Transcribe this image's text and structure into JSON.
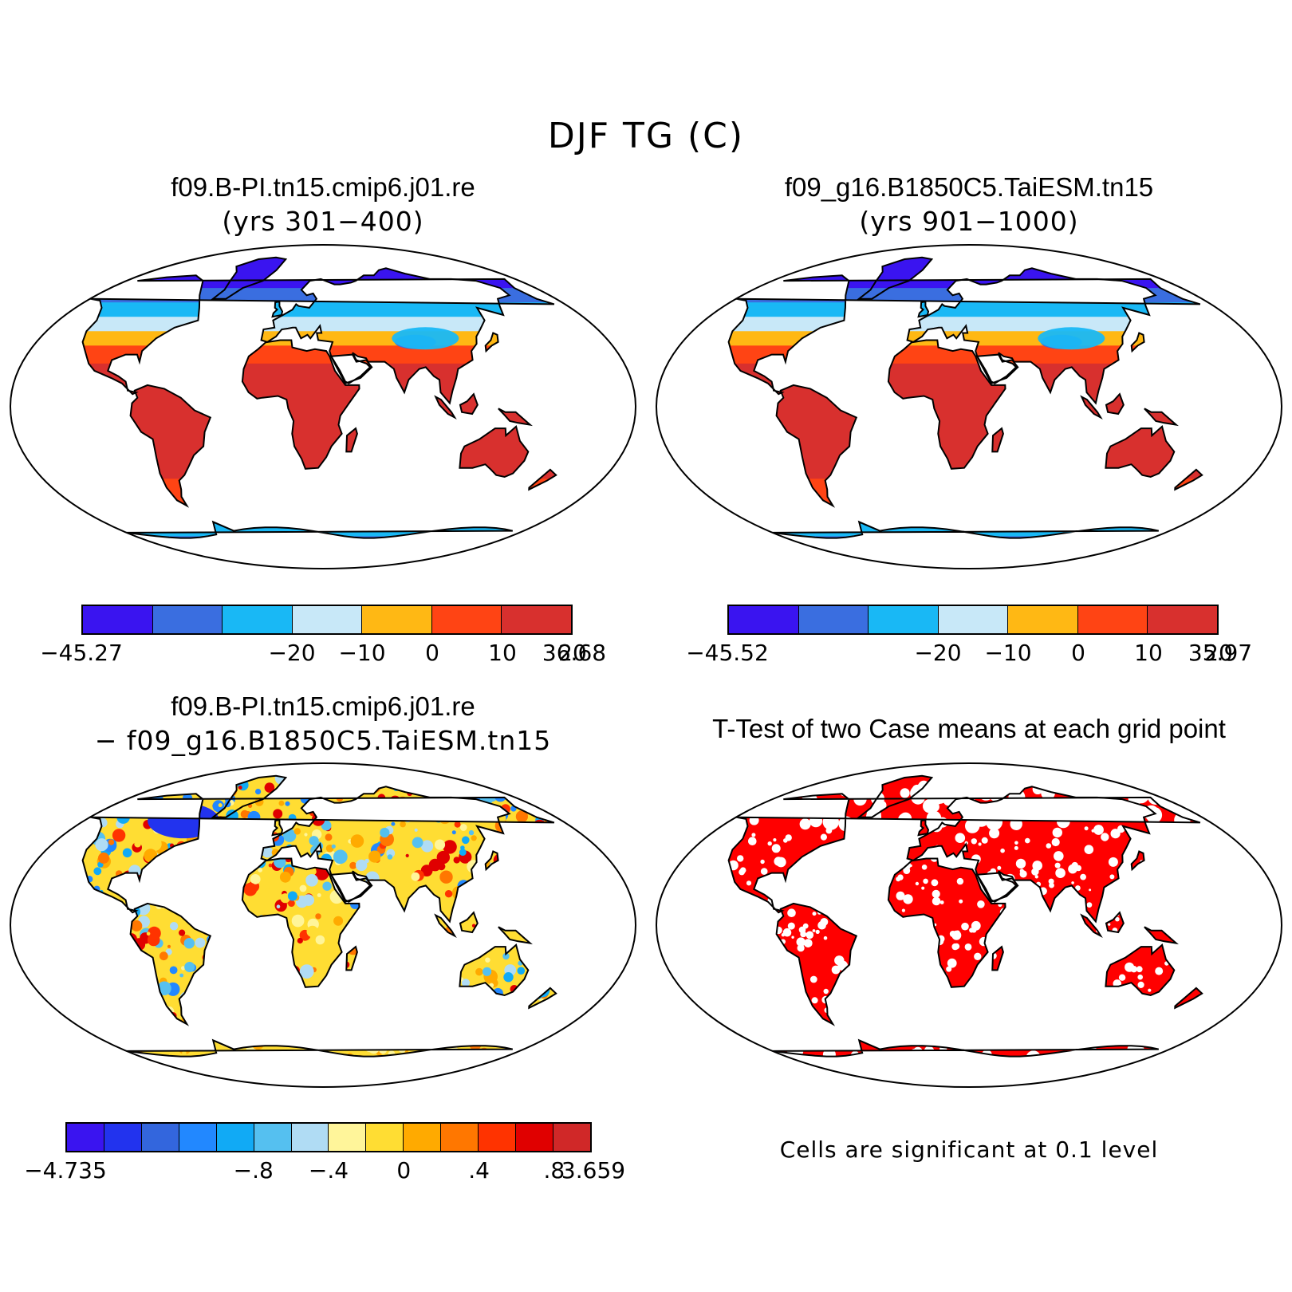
{
  "figure": {
    "title": "DJF TG (C)"
  },
  "panels": [
    {
      "id": "case1",
      "title": "f09.B-PI.tn15.cmip6.j01.re",
      "subtitle": "(yrs 301−400)",
      "colorbar": {
        "colors": [
          "#3a14f0",
          "#3a6ee0",
          "#19b8f5",
          "#c8e8f8",
          "#ffb814",
          "#ff4414",
          "#d8302e"
        ],
        "tick_labels": [
          "−45.27",
          "−20",
          "−10",
          "0",
          "10",
          "20",
          "36.68"
        ],
        "levels": [
          -45.27,
          -30,
          -20,
          -10,
          0,
          10,
          20,
          36.68
        ]
      }
    },
    {
      "id": "case2",
      "title": "f09_g16.B1850C5.TaiESM.tn15",
      "subtitle": "(yrs 901−1000)",
      "colorbar": {
        "colors": [
          "#3a14f0",
          "#3a6ee0",
          "#19b8f5",
          "#c8e8f8",
          "#ffb814",
          "#ff4414",
          "#d8302e"
        ],
        "tick_labels": [
          "−45.52",
          "−20",
          "−10",
          "0",
          "10",
          "20",
          "35.97"
        ],
        "levels": [
          -45.52,
          -30,
          -20,
          -10,
          0,
          10,
          20,
          35.97
        ]
      }
    },
    {
      "id": "difference",
      "title": "f09.B-PI.tn15.cmip6.j01.re",
      "subtitle": "− f09_g16.B1850C5.TaiESM.tn15",
      "colorbar": {
        "colors": [
          "#3a14f0",
          "#2233ee",
          "#3366dd",
          "#2288ff",
          "#11aaf5",
          "#55c0f0",
          "#b0dcf4",
          "#fff59a",
          "#ffdd33",
          "#ffaa00",
          "#ff7700",
          "#ff3300",
          "#e00000",
          "#d02828"
        ],
        "tick_labels": [
          "−4.735",
          "−.8",
          "−.4",
          "0",
          ".4",
          ".8",
          "3.659"
        ]
      }
    },
    {
      "id": "ttest",
      "title": "T-Test of two Case means at each grid point",
      "note": "Cells are significant at 0.1 level",
      "significant_color": "#ff0000"
    }
  ]
}
